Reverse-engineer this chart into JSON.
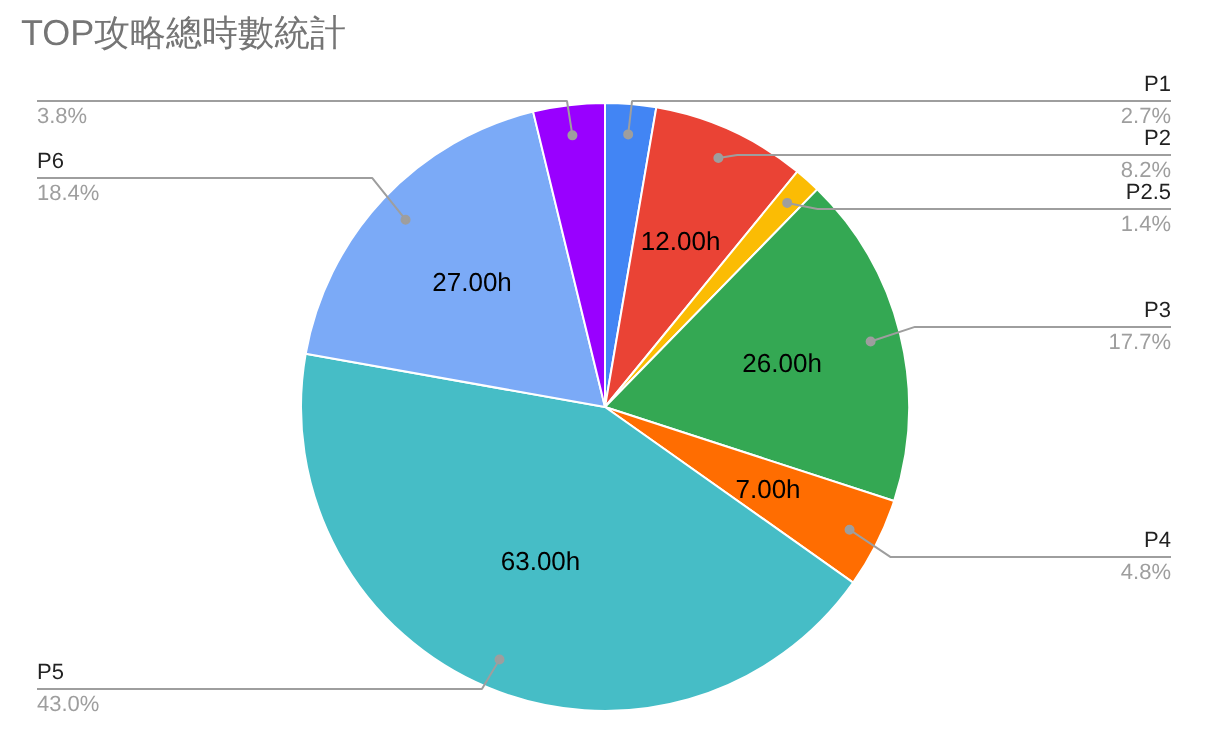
{
  "chart_data": {
    "type": "pie",
    "title": "TOP攻略總時數統計",
    "categories": [
      "P1",
      "P2",
      "P2.5",
      "P3",
      "P4",
      "P5",
      "P6",
      null
    ],
    "values": [
      2.7,
      8.2,
      1.4,
      17.7,
      4.8,
      43.0,
      18.4,
      3.8
    ],
    "value_labels": [
      "2.7%",
      "8.2%",
      "1.4%",
      "17.7%",
      "4.8%",
      "43.0%",
      "18.4%",
      "3.8%"
    ],
    "colors": [
      "#4285f4",
      "#ea4335",
      "#fbbc04",
      "#34a853",
      "#ff6d01",
      "#46bdc6",
      "#7baaf7",
      "#9900ff"
    ],
    "annotations": [
      {
        "text": "12.00h",
        "x": "P2"
      },
      {
        "text": "26.00h",
        "x": "P3"
      },
      {
        "text": "7.00h",
        "x": "P4"
      },
      {
        "text": "63.00h",
        "x": "P5"
      },
      {
        "text": "27.00h",
        "x": "P6"
      }
    ]
  }
}
